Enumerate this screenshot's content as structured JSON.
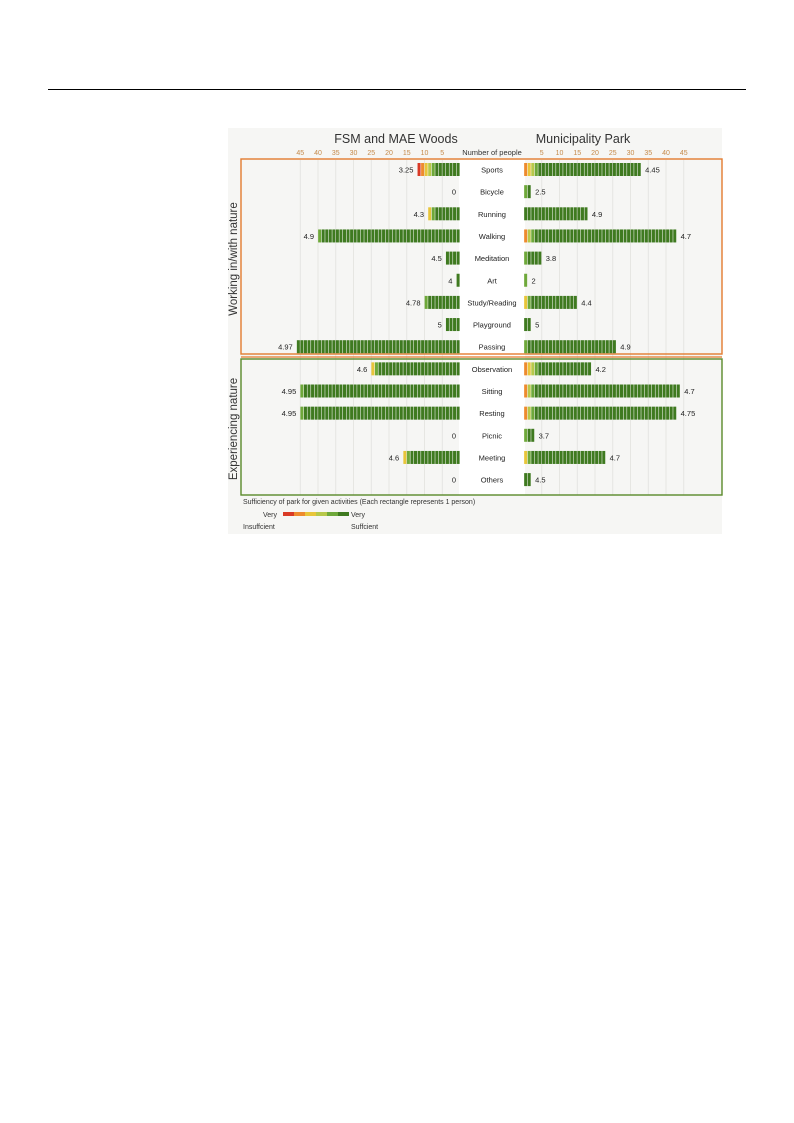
{
  "chart_data": {
    "type": "bar",
    "title_left": "FSM and MAE Woods",
    "title_right": "Municipality Park",
    "axis_label": "Number of people",
    "axis_ticks_left": [
      "45",
      "40",
      "35",
      "30",
      "25",
      "20",
      "15",
      "10",
      "5"
    ],
    "axis_ticks_right": [
      "5",
      "10",
      "15",
      "20",
      "25",
      "30",
      "35",
      "40",
      "45"
    ],
    "xlim": [
      0,
      45
    ],
    "groups": [
      {
        "name": "Working in/with nature",
        "color": "#e37b2f"
      },
      {
        "name": "Experiencing nature",
        "color": "#5a8a2a"
      }
    ],
    "categories": [
      "Sports",
      "Bicycle",
      "Running",
      "Walking",
      "Meditation",
      "Art",
      "Study/Reading",
      "Playground",
      "Passing",
      "Observation",
      "Sitting",
      "Resting",
      "Picnic",
      "Meeting",
      "Others"
    ],
    "category_group": [
      0,
      0,
      0,
      0,
      0,
      0,
      0,
      0,
      0,
      1,
      1,
      1,
      1,
      1,
      1
    ],
    "series": [
      {
        "name": "FSM and MAE Woods",
        "counts": [
          12,
          0,
          9,
          40,
          4,
          1,
          10,
          4,
          46,
          25,
          45,
          45,
          0,
          16,
          0
        ],
        "scores": [
          "3.25",
          "0",
          "4.3",
          "4.9",
          "4.5",
          "4",
          "4.78",
          "5",
          "4.97",
          "4.6",
          "4.95",
          "4.95",
          "0",
          "4.6",
          "0"
        ]
      },
      {
        "name": "Municipality Park",
        "counts": [
          33,
          2,
          18,
          43,
          5,
          1,
          15,
          2,
          26,
          19,
          44,
          43,
          3,
          23,
          2
        ],
        "scores": [
          "4.45",
          "2.5",
          "4.9",
          "4.7",
          "3.8",
          "2",
          "4.4",
          "5",
          "4.9",
          "4.2",
          "4.7",
          "4.75",
          "3.7",
          "4.7",
          "4.5"
        ]
      }
    ],
    "legend": {
      "caption": "Sufficiency of park for given activities (Each rectangle represents  1 person)",
      "low_label": [
        "Very",
        "Insuffcient"
      ],
      "high_label": [
        "Very",
        "Suffcient"
      ],
      "colors": [
        "#d93a26",
        "#ee8a2e",
        "#e8c53a",
        "#b7c84a",
        "#6ea83a",
        "#3f7a20"
      ]
    }
  }
}
